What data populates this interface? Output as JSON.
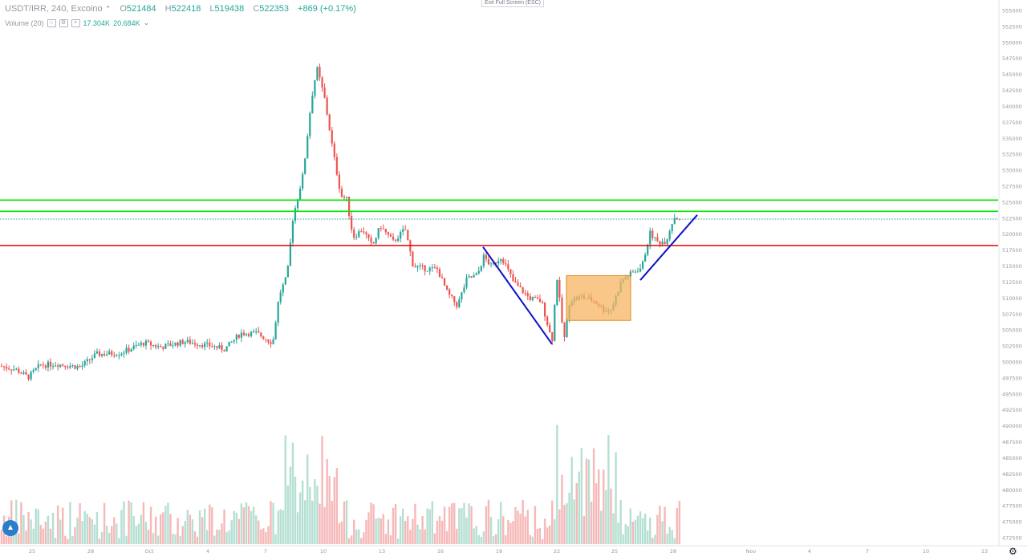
{
  "legend": {
    "symbol": "USDT/IRR, 240, Excoino",
    "open_key": "O",
    "open": "521484",
    "high_key": "H",
    "high": "522418",
    "low_key": "L",
    "low": "519438",
    "close_key": "C",
    "close": "522353",
    "change": "+869 (+0.17%)",
    "chevron_icon": "chevron-up-icon"
  },
  "volume_legend": {
    "label": "Volume (20)",
    "v1": "17.304K",
    "v2": "20.684K",
    "chevron_icon": "chevron-down-icon"
  },
  "exit_fullscreen": "Exit Full Screen (ESC)",
  "colors": {
    "up": "#26a69a",
    "down": "#ef5350",
    "vol_up": "#b5dfd2",
    "vol_down": "#f6b8b8",
    "green_line": "#00e600",
    "red_line": "#e80000",
    "trend_line": "#1010c8",
    "rect_fill": "#f5b461",
    "rect_stroke": "#e08b1a"
  },
  "chart_data": {
    "type": "candlestick",
    "title": "USDT/IRR, 240, Excoino",
    "y_ticks": [
      555000,
      552500,
      550000,
      547500,
      545000,
      542500,
      540000,
      537500,
      535000,
      532500,
      530000,
      527500,
      525000,
      522500,
      520000,
      517500,
      515000,
      512500,
      510000,
      507500,
      505000,
      502500,
      500000,
      497500,
      495000,
      492500,
      490000,
      487500,
      485000,
      482500,
      480000,
      477500,
      475000,
      472500
    ],
    "x_ticks": [
      "25",
      "28",
      "Oct",
      "4",
      "7",
      "10",
      "13",
      "16",
      "19",
      "22",
      "25",
      "28",
      "Nov",
      "4",
      "7",
      "10",
      "13"
    ],
    "horizontal_levels": [
      {
        "value": 525321,
        "label": "525321",
        "color": "green"
      },
      {
        "value": 523566,
        "label": "523566",
        "color": "green"
      },
      {
        "value": 522353,
        "label": "522353",
        "color": "teal",
        "dotted": true
      },
      {
        "value": 518224,
        "label": "518224",
        "color": "red"
      }
    ],
    "drawings": [
      {
        "kind": "trend_line",
        "from": [
          "Oct 18",
          518000
        ],
        "to": [
          "Oct 21",
          502800
        ]
      },
      {
        "kind": "trend_line",
        "from": [
          "Oct 26",
          512800
        ],
        "to": [
          "Oct 29",
          523000
        ]
      },
      {
        "kind": "rectangle",
        "from": [
          "Oct 22",
          513500
        ],
        "to": [
          "Oct 25",
          506500
        ]
      }
    ],
    "waypoints": [
      [
        0,
        499400
      ],
      [
        20,
        498800
      ],
      [
        35,
        497600
      ],
      [
        50,
        499500
      ],
      [
        70,
        499700
      ],
      [
        100,
        499200
      ],
      [
        120,
        501200
      ],
      [
        150,
        501400
      ],
      [
        180,
        503000
      ],
      [
        200,
        502300
      ],
      [
        230,
        503200
      ],
      [
        260,
        502600
      ],
      [
        280,
        502000
      ],
      [
        300,
        504500
      ],
      [
        320,
        504500
      ],
      [
        340,
        503000
      ],
      [
        348,
        510500
      ],
      [
        358,
        513500
      ],
      [
        365,
        522500
      ],
      [
        378,
        529500
      ],
      [
        388,
        541000
      ],
      [
        395,
        546000
      ],
      [
        405,
        541000
      ],
      [
        415,
        533000
      ],
      [
        425,
        526000
      ],
      [
        432,
        525500
      ],
      [
        440,
        519500
      ],
      [
        452,
        520800
      ],
      [
        464,
        518000
      ],
      [
        474,
        521300
      ],
      [
        490,
        518800
      ],
      [
        505,
        520800
      ],
      [
        515,
        515000
      ],
      [
        530,
        514600
      ],
      [
        545,
        514500
      ],
      [
        558,
        510700
      ],
      [
        570,
        508800
      ],
      [
        582,
        513000
      ],
      [
        595,
        513600
      ],
      [
        603,
        516500
      ],
      [
        612,
        515000
      ],
      [
        625,
        516500
      ],
      [
        640,
        512500
      ],
      [
        660,
        510000
      ],
      [
        675,
        509500
      ],
      [
        688,
        503200
      ],
      [
        694,
        513500
      ],
      [
        703,
        503300
      ],
      [
        710,
        509600
      ],
      [
        725,
        510200
      ],
      [
        740,
        509600
      ],
      [
        752,
        508200
      ],
      [
        762,
        508200
      ],
      [
        775,
        512800
      ],
      [
        790,
        514100
      ],
      [
        800,
        514800
      ],
      [
        810,
        520200
      ],
      [
        820,
        518700
      ],
      [
        830,
        518900
      ],
      [
        840,
        522700
      ],
      [
        848,
        522353
      ]
    ]
  }
}
